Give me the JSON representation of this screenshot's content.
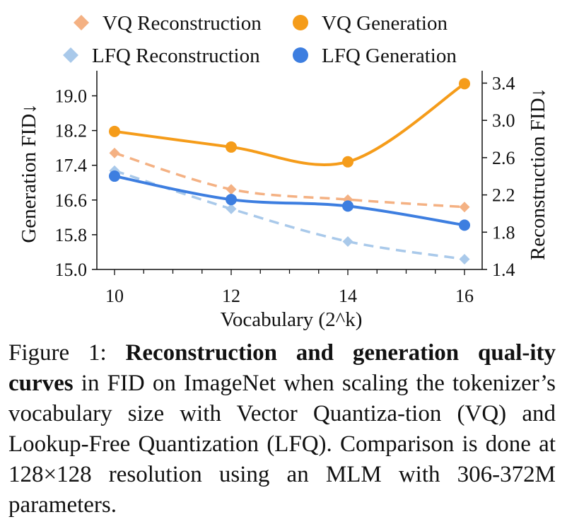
{
  "chart_data": {
    "type": "line",
    "x": [
      10,
      12,
      14,
      16
    ],
    "xlabel": "Vocabulary (2^k)",
    "ylabel_left": "Generation FID↓",
    "ylabel_right": "Reconstruction FID↓",
    "ylim_left": [
      15.0,
      19.6
    ],
    "ylim_right": [
      1.4,
      3.5
    ],
    "yticks_left": [
      "15.0",
      "15.8",
      "16.6",
      "17.4",
      "18.2",
      "19.0"
    ],
    "yticks_right": [
      "1.4",
      "1.8",
      "2.2",
      "2.6",
      "3.0",
      "3.4"
    ],
    "xticks": [
      "10",
      "12",
      "14",
      "16"
    ],
    "series": [
      {
        "name": "VQ Reconstruction",
        "axis": "right",
        "style": "dashed",
        "marker": "diamond",
        "color": "#f4b183",
        "values": [
          2.65,
          2.26,
          2.15,
          2.07
        ]
      },
      {
        "name": "VQ Generation",
        "axis": "left",
        "style": "solid",
        "marker": "circle",
        "color": "#f59c1a",
        "values": [
          18.18,
          17.82,
          17.48,
          19.28
        ]
      },
      {
        "name": "LFQ Reconstruction",
        "axis": "right",
        "style": "dashed",
        "marker": "diamond",
        "color": "#a9c9ea",
        "values": [
          2.46,
          2.05,
          1.7,
          1.51
        ]
      },
      {
        "name": "LFQ Generation",
        "axis": "left",
        "style": "solid",
        "marker": "circle",
        "color": "#3d7ee0",
        "values": [
          17.15,
          16.61,
          16.46,
          16.02
        ]
      }
    ]
  },
  "caption": {
    "prefix": "Figure 1: ",
    "bold1": "Reconstruction and generation qual-ity curves",
    "rest": " in FID on ImageNet when scaling the tokenizer’s vocabulary size with Vector Quantiza-tion (VQ) and Lookup-Free Quantization (LFQ). Comparison is done at 128×128 resolution using an MLM with 306-372M parameters."
  }
}
